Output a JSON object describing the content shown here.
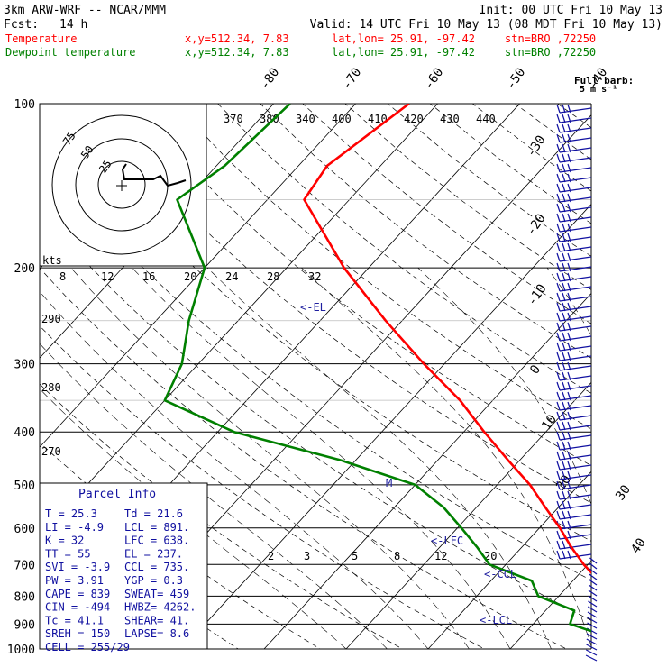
{
  "header": {
    "model": "3km ARW-WRF -- NCAR/MMM",
    "init": "Init: 00 UTC Fri 10 May 13",
    "fcst_label": "Fcst:",
    "fcst_value": "14 h",
    "valid": "Valid: 14 UTC Fri 10 May 13 (08 MDT Fri 10 May 13)",
    "rows": [
      {
        "name": "Temperature",
        "xy": "x,y=512.34,   7.83",
        "latlon": "lat,lon= 25.91, -97.42",
        "stn": "stn=BRO ,72250",
        "color": "#ff0000"
      },
      {
        "name": "Dewpoint temperature",
        "xy": "x,y=512.34,   7.83",
        "latlon": "lat,lon= 25.91, -97.42",
        "stn": "stn=BRO ,72250",
        "color": "#008000"
      }
    ]
  },
  "barb_legend": {
    "line1": "Full barb:",
    "line2": "5 m s⁻¹"
  },
  "hodograph": {
    "unit_label": "kts",
    "ring_labels": [
      "75",
      "50",
      "25"
    ],
    "speed_ticks": [
      "8",
      "12",
      "16",
      "20"
    ],
    "wind_x_ticks": [
      "8",
      "12",
      "16",
      "20",
      "24",
      "28",
      "32"
    ]
  },
  "parcel_info": {
    "title": "Parcel Info",
    "rows": [
      [
        "T   =  25.3",
        "Td =  21.6"
      ],
      [
        "LI  =  -4.9",
        "LCL =  891."
      ],
      [
        "K   =    32",
        "LFC =  638."
      ],
      [
        "TT  =    55",
        "EL  =  237."
      ],
      [
        "SVI =  -3.9",
        "CCL =  735."
      ],
      [
        "PW  =  3.91",
        "YGP =   0.3"
      ],
      [
        "CAPE =  839",
        "SWEAT=  459"
      ],
      [
        "CIN =  -494",
        "HWBZ= 4262."
      ],
      [
        "Tc  =  41.1",
        "SHEAR=  41."
      ],
      [
        "SREH =  150",
        "LAPSE=  8.6"
      ],
      [
        "CELL = 255/29",
        ""
      ]
    ]
  },
  "chart_data": {
    "type": "line",
    "title": "Skew-T log-P sounding",
    "pressure_levels": [
      "100",
      "200",
      "300",
      "400",
      "500",
      "600",
      "700",
      "800",
      "900",
      "1000"
    ],
    "isotherm_labels": [
      "-80",
      "-70",
      "-60",
      "-50",
      "-40",
      "-30",
      "-20",
      "-10",
      "0",
      "10",
      "20",
      "30",
      "40"
    ],
    "theta_labels": [
      "370",
      "380",
      "340",
      "400",
      "410",
      "420",
      "430",
      "440"
    ],
    "dry_adiabat_labels": [
      "290",
      "280",
      "270"
    ],
    "mixing_ratio_labels": [
      "2",
      "3",
      "5",
      "8",
      "12",
      "20"
    ],
    "markers": {
      "EL": "<-EL",
      "LFC": "<-LFC",
      "CCL": "<-CCL",
      "LCL": "<-LCL",
      "M": "M"
    },
    "series": [
      {
        "name": "Temperature",
        "color": "#ff0000",
        "points": [
          [
            1000,
            24.5
          ],
          [
            975,
            23.8
          ],
          [
            950,
            22.0
          ],
          [
            900,
            21.5
          ],
          [
            850,
            19.8
          ],
          [
            800,
            17.0
          ],
          [
            750,
            13.2
          ],
          [
            700,
            9.5
          ],
          [
            650,
            6.0
          ],
          [
            600,
            2.5
          ],
          [
            550,
            -1.6
          ],
          [
            500,
            -6.0
          ],
          [
            450,
            -11.5
          ],
          [
            400,
            -17.5
          ],
          [
            350,
            -24.0
          ],
          [
            300,
            -32.5
          ],
          [
            250,
            -42.0
          ],
          [
            200,
            -53.0
          ],
          [
            150,
            -65.5
          ],
          [
            130,
            -66.5
          ],
          [
            100,
            -63.5
          ]
        ]
      },
      {
        "name": "Dewpoint temperature",
        "color": "#008000",
        "points": [
          [
            1000,
            21.6
          ],
          [
            975,
            20.5
          ],
          [
            950,
            20.6
          ],
          [
            900,
            14.5
          ],
          [
            850,
            13.5
          ],
          [
            800,
            7.5
          ],
          [
            750,
            5.0
          ],
          [
            700,
            -2.0
          ],
          [
            650,
            -5.5
          ],
          [
            600,
            -9.5
          ],
          [
            550,
            -14.0
          ],
          [
            500,
            -20.0
          ],
          [
            450,
            -32.0
          ],
          [
            400,
            -48.0
          ],
          [
            350,
            -60.0
          ],
          [
            300,
            -62.0
          ],
          [
            250,
            -66.0
          ],
          [
            200,
            -70.0
          ],
          [
            150,
            -81.0
          ],
          [
            130,
            -79.0
          ],
          [
            100,
            -78.0
          ]
        ]
      }
    ]
  }
}
